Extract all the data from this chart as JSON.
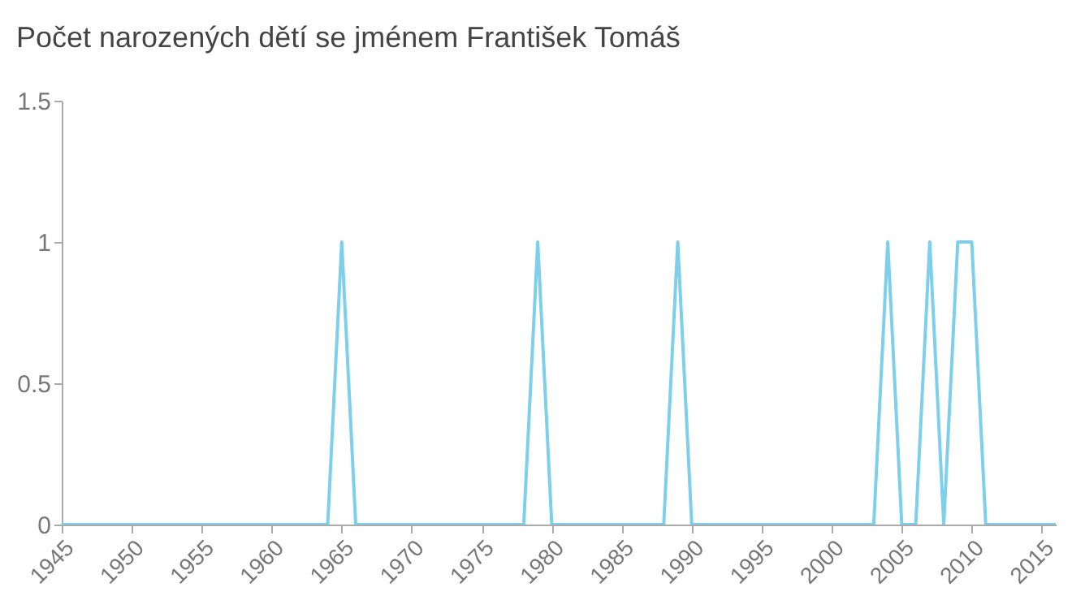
{
  "chart_data": {
    "type": "line",
    "title": "Počet narozených dětí se jménem František Tomáš",
    "x": [
      1945,
      1946,
      1947,
      1948,
      1949,
      1950,
      1951,
      1952,
      1953,
      1954,
      1955,
      1956,
      1957,
      1958,
      1959,
      1960,
      1961,
      1962,
      1963,
      1964,
      1965,
      1966,
      1967,
      1968,
      1969,
      1970,
      1971,
      1972,
      1973,
      1974,
      1975,
      1976,
      1977,
      1978,
      1979,
      1980,
      1981,
      1982,
      1983,
      1984,
      1985,
      1986,
      1987,
      1988,
      1989,
      1990,
      1991,
      1992,
      1993,
      1994,
      1995,
      1996,
      1997,
      1998,
      1999,
      2000,
      2001,
      2002,
      2003,
      2004,
      2005,
      2006,
      2007,
      2008,
      2009,
      2010,
      2011,
      2012,
      2013,
      2014,
      2015,
      2016
    ],
    "series": [
      {
        "color": "#7ecfeb",
        "values": [
          0,
          0,
          0,
          0,
          0,
          0,
          0,
          0,
          0,
          0,
          0,
          0,
          0,
          0,
          0,
          0,
          0,
          0,
          0,
          0,
          1,
          0,
          0,
          0,
          0,
          0,
          0,
          0,
          0,
          0,
          0,
          0,
          0,
          0,
          1,
          0,
          0,
          0,
          0,
          0,
          0,
          0,
          0,
          0,
          1,
          0,
          0,
          0,
          0,
          0,
          0,
          0,
          0,
          0,
          0,
          0,
          0,
          0,
          0,
          1,
          0,
          0,
          1,
          0,
          1,
          1,
          0,
          0,
          0,
          0,
          0,
          0
        ]
      }
    ],
    "xlim": [
      1945,
      2016
    ],
    "xticks": [
      1945,
      1950,
      1955,
      1960,
      1965,
      1970,
      1975,
      1980,
      1985,
      1990,
      1995,
      2000,
      2005,
      2010,
      2015
    ],
    "ylim": [
      0,
      1.5
    ],
    "yticks": [
      0,
      0.5,
      1,
      1.5
    ],
    "grid": false,
    "legend": false,
    "marker": "none",
    "line_style": "solid"
  }
}
